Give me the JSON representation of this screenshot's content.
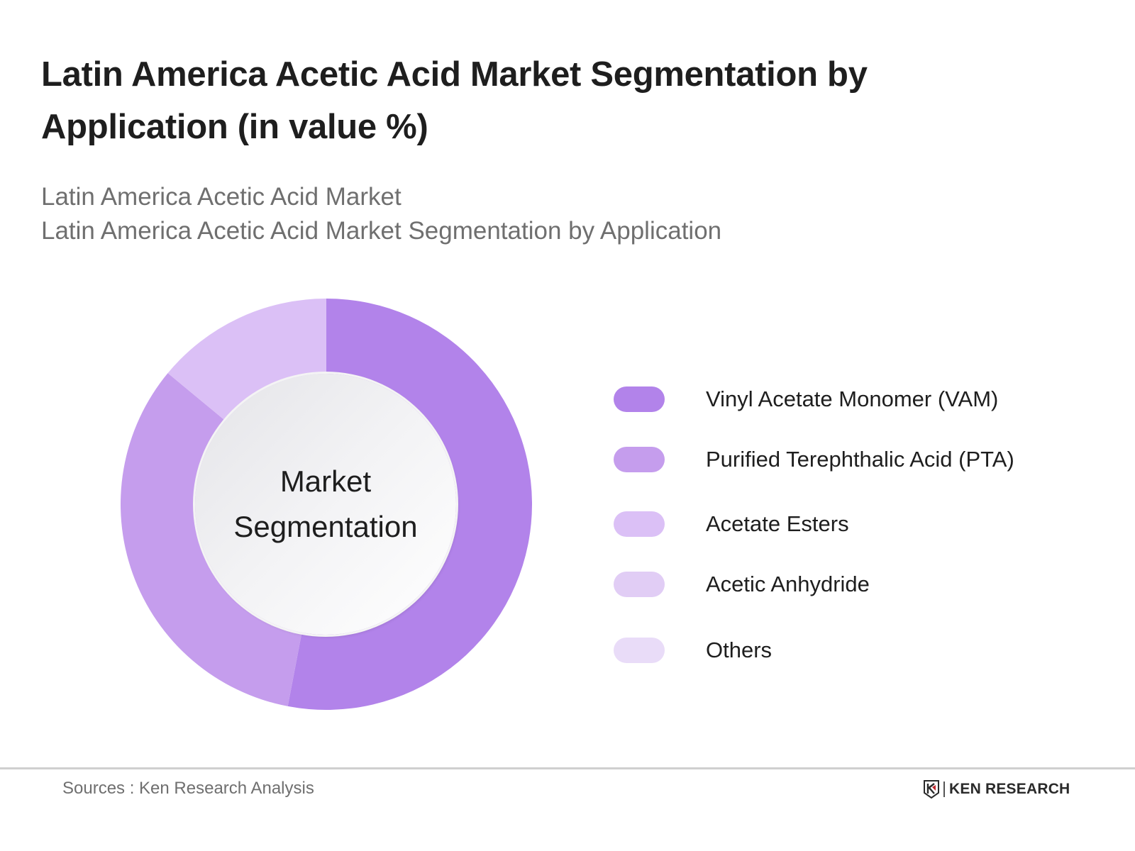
{
  "header": {
    "title": "Latin America Acetic Acid Market Segmentation by Application (in value %)",
    "subtitle_line1": "Latin America Acetic Acid Market",
    "subtitle_line2": "Latin America Acetic Acid Market Segmentation by Application"
  },
  "center_label": {
    "line1": "Market",
    "line2": "Segmentation"
  },
  "legend": [
    {
      "label": "Vinyl Acetate Monomer (VAM)",
      "color": "#b283ea"
    },
    {
      "label": "Purified Terephthalic Acid (PTA)",
      "color": "#c59ded"
    },
    {
      "label": "Acetate Esters",
      "color": "#dbc0f6"
    },
    {
      "label": "Acetic Anhydride",
      "color": "#e1cdf5"
    },
    {
      "label": "Others",
      "color": "#e9dcf8"
    }
  ],
  "footer": {
    "source": "Sources : Ken Research Analysis",
    "brand": "KEN RESEARCH"
  },
  "chart_data": {
    "type": "pie",
    "subtype": "donut",
    "title": "Latin America Acetic Acid Market Segmentation by Application (in value %)",
    "center_text": "Market Segmentation",
    "categories": [
      "Vinyl Acetate Monomer (VAM)",
      "Purified Terephthalic Acid (PTA)",
      "Acetate Esters",
      "Acetic Anhydride",
      "Others"
    ],
    "values": [
      53,
      33,
      14,
      0,
      0
    ],
    "colors": [
      "#b283ea",
      "#c59ded",
      "#dbc0f6",
      "#e1cdf5",
      "#e9dcf8"
    ],
    "start_angle_deg": 0,
    "direction": "clockwise",
    "legend_position": "right",
    "data_labels": false
  }
}
